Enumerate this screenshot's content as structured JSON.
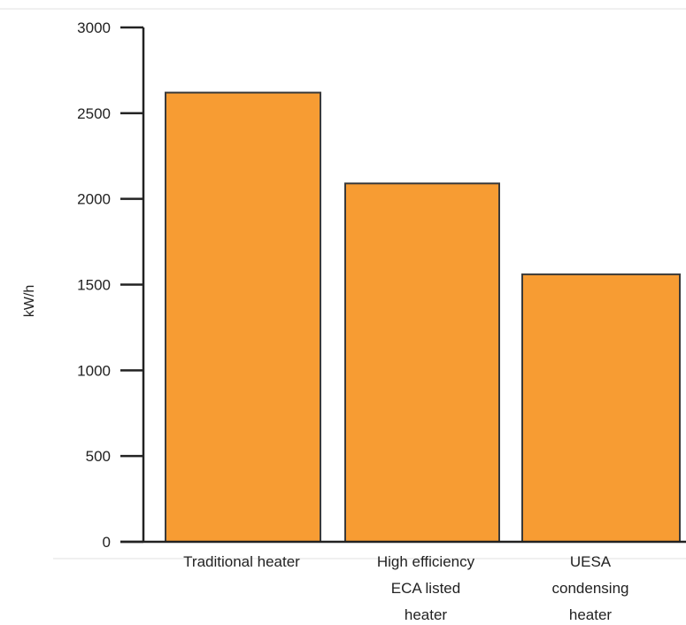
{
  "chart_data": {
    "type": "bar",
    "categories": [
      [
        "Traditional heater"
      ],
      [
        "High efficiency",
        "ECA listed",
        "heater"
      ],
      [
        "UESA",
        "condensing",
        "heater"
      ]
    ],
    "values": [
      2620,
      2090,
      1560
    ],
    "title": "",
    "xlabel": "",
    "ylabel": "kW/h",
    "ylim": [
      0,
      3000
    ],
    "yticks": [
      0,
      500,
      1000,
      1500,
      2000,
      2500,
      3000
    ],
    "grid": false,
    "legend": "none"
  },
  "colors": {
    "bar_fill": "#F79C33",
    "bar_stroke": "#3a3a3a",
    "axis": "#222222",
    "frame_line": "#e2e2e2"
  }
}
